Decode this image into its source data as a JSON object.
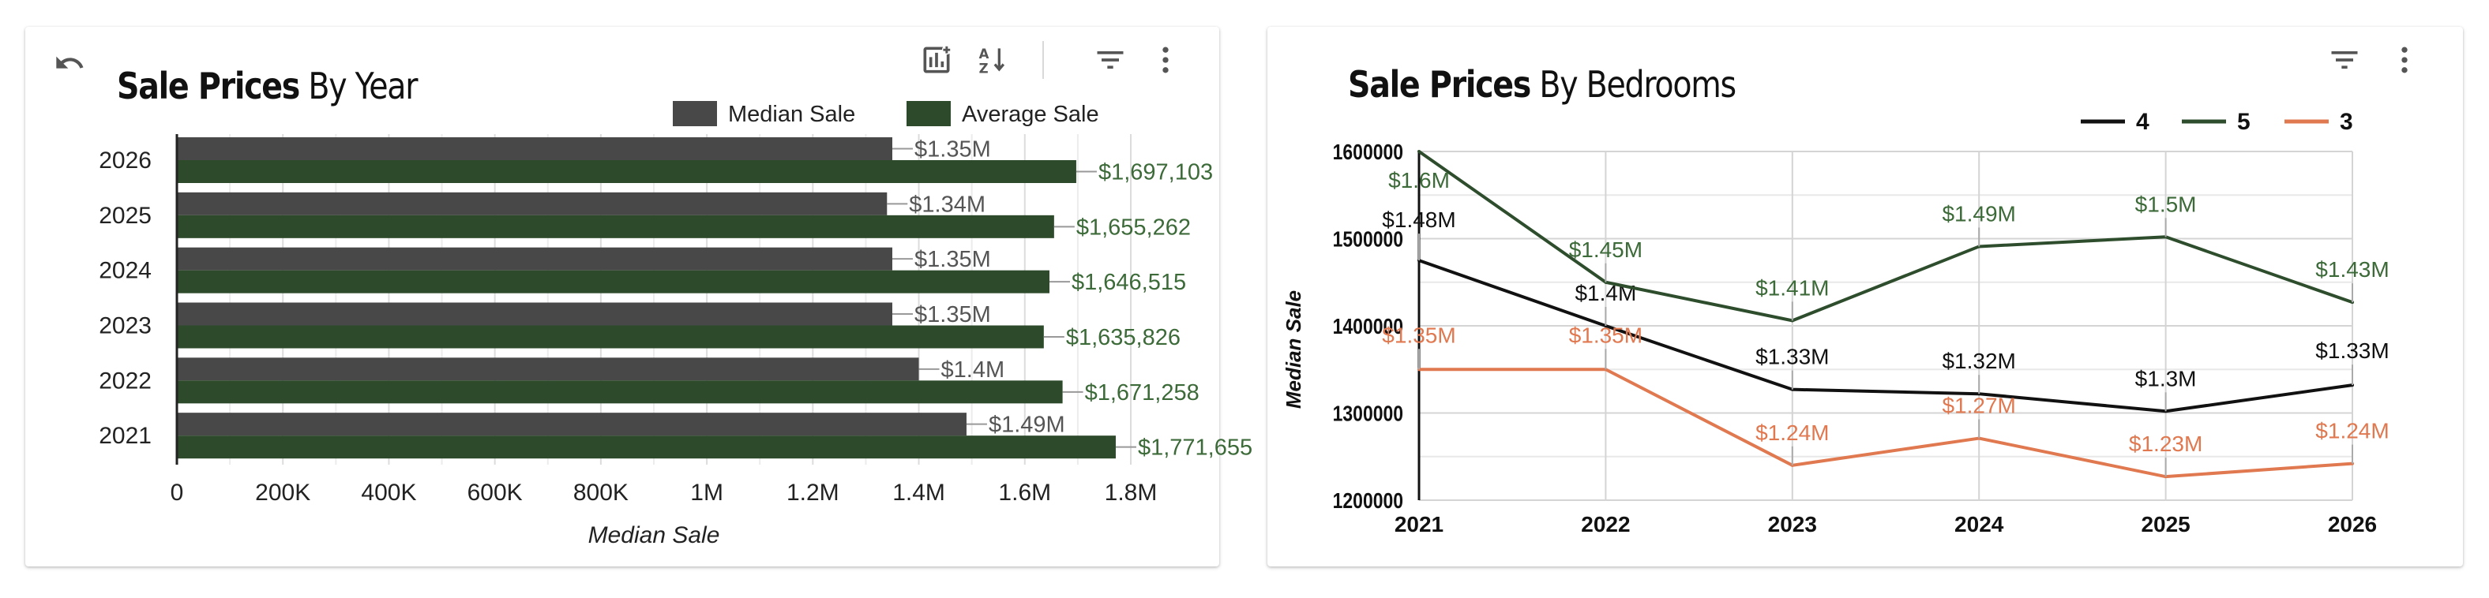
{
  "chart_data": [
    {
      "type": "bar",
      "orientation": "horizontal",
      "title_bold": "Sale Prices",
      "title_rest": "By Year",
      "categories": [
        "2026",
        "2025",
        "2024",
        "2023",
        "2022",
        "2021"
      ],
      "series": [
        {
          "name": "Median Sale",
          "color": "#484848",
          "values": [
            1350000,
            1340000,
            1350000,
            1350000,
            1400000,
            1490000
          ],
          "labels": [
            "$1.35M",
            "$1.34M",
            "$1.35M",
            "$1.35M",
            "$1.4M",
            "$1.49M"
          ]
        },
        {
          "name": "Average Sale",
          "color": "#2d4b2b",
          "values": [
            1697103,
            1655262,
            1646515,
            1635826,
            1671258,
            1771655
          ],
          "labels": [
            "$1,697,103",
            "$1,655,262",
            "$1,646,515",
            "$1,635,826",
            "$1,671,258",
            "$1,771,655"
          ]
        }
      ],
      "xlabel": "Median Sale",
      "xlim": [
        0,
        1800000
      ],
      "xticks": [
        0,
        200000,
        400000,
        600000,
        800000,
        1000000,
        1200000,
        1400000,
        1600000,
        1800000
      ],
      "xtick_labels": [
        "0",
        "200K",
        "400K",
        "600K",
        "800K",
        "1M",
        "1.2M",
        "1.4M",
        "1.6M",
        "1.8M"
      ],
      "legend_position": "top-right",
      "grid": true
    },
    {
      "type": "line",
      "title_bold": "Sale Prices",
      "title_rest": "By Bedrooms",
      "x": [
        "2021",
        "2022",
        "2023",
        "2024",
        "2025",
        "2026"
      ],
      "series": [
        {
          "name": "4",
          "color": "#111111",
          "values": [
            1475000,
            1400000,
            1327000,
            1322000,
            1302000,
            1332000
          ],
          "labels": [
            "$1.48M",
            "$1.4M",
            "$1.33M",
            "$1.32M",
            "$1.3M",
            "$1.33M"
          ]
        },
        {
          "name": "5",
          "color": "#2e4d2c",
          "values": [
            1600000,
            1450000,
            1406000,
            1491000,
            1502000,
            1427000
          ],
          "labels": [
            "$1.6M",
            "$1.45M",
            "$1.41M",
            "$1.49M",
            "$1.5M",
            "$1.43M"
          ]
        },
        {
          "name": "3",
          "color": "#e07850",
          "values": [
            1350000,
            1350000,
            1240000,
            1271000,
            1227000,
            1242000
          ],
          "labels": [
            "$1.35M",
            "$1.35M",
            "$1.24M",
            "$1.27M",
            "$1.23M",
            "$1.24M"
          ]
        }
      ],
      "ylabel": "Median Sale",
      "ylim": [
        1200000,
        1600000
      ],
      "yticks": [
        1200000,
        1300000,
        1400000,
        1500000,
        1600000
      ],
      "ytick_labels": [
        "1200000",
        "1300000",
        "1400000",
        "1500000",
        "1600000"
      ],
      "legend_position": "top-right",
      "grid": true
    }
  ],
  "toolbar": {
    "year": {
      "undo_icon": "undo-icon",
      "chart_settings_icon": "chart-settings-icon",
      "sort_icon": "sort-az-icon",
      "filter_icon": "filter-icon",
      "more_icon": "more-vert-icon"
    },
    "bedrooms": {
      "filter_icon": "filter-icon",
      "more_icon": "more-vert-icon"
    }
  }
}
